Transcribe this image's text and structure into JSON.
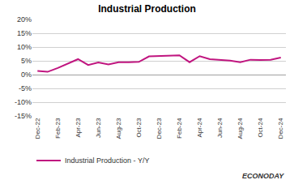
{
  "chart_data": {
    "type": "line",
    "title": "Industrial Production",
    "categories": [
      "Dec-22",
      null,
      "Feb-23",
      null,
      "Apr-23",
      null,
      "Jun-23",
      null,
      "Aug-23",
      null,
      "Oct-23",
      null,
      "Dec-23",
      null,
      "Feb-24",
      null,
      "Apr-24",
      null,
      "Jun-24",
      null,
      "Aug-24",
      null,
      "Oct-24",
      null,
      "Dec-24"
    ],
    "series": [
      {
        "name": "Industrial Production - Y/Y",
        "color": "#c0157f",
        "values": [
          1.3,
          1.0,
          2.4,
          3.9,
          5.6,
          3.5,
          4.4,
          3.7,
          4.5,
          4.5,
          4.6,
          6.6,
          6.8,
          6.9,
          7.0,
          4.5,
          6.7,
          5.6,
          5.3,
          5.1,
          4.5,
          5.4,
          5.3,
          5.4,
          6.2
        ]
      }
    ],
    "ylim": [
      -15,
      20
    ],
    "yticks": [
      {
        "value": -15,
        "label": "-15%"
      },
      {
        "value": -10,
        "label": "-10%"
      },
      {
        "value": -5,
        "label": "-5%"
      },
      {
        "value": 0,
        "label": "0%"
      },
      {
        "value": 5,
        "label": "5%"
      },
      {
        "value": 10,
        "label": "10%"
      },
      {
        "value": 15,
        "label": "15%"
      },
      {
        "value": 20,
        "label": "20%"
      }
    ],
    "grid": true,
    "legend": "bottom",
    "annotations": [
      "ECONODAY"
    ]
  }
}
